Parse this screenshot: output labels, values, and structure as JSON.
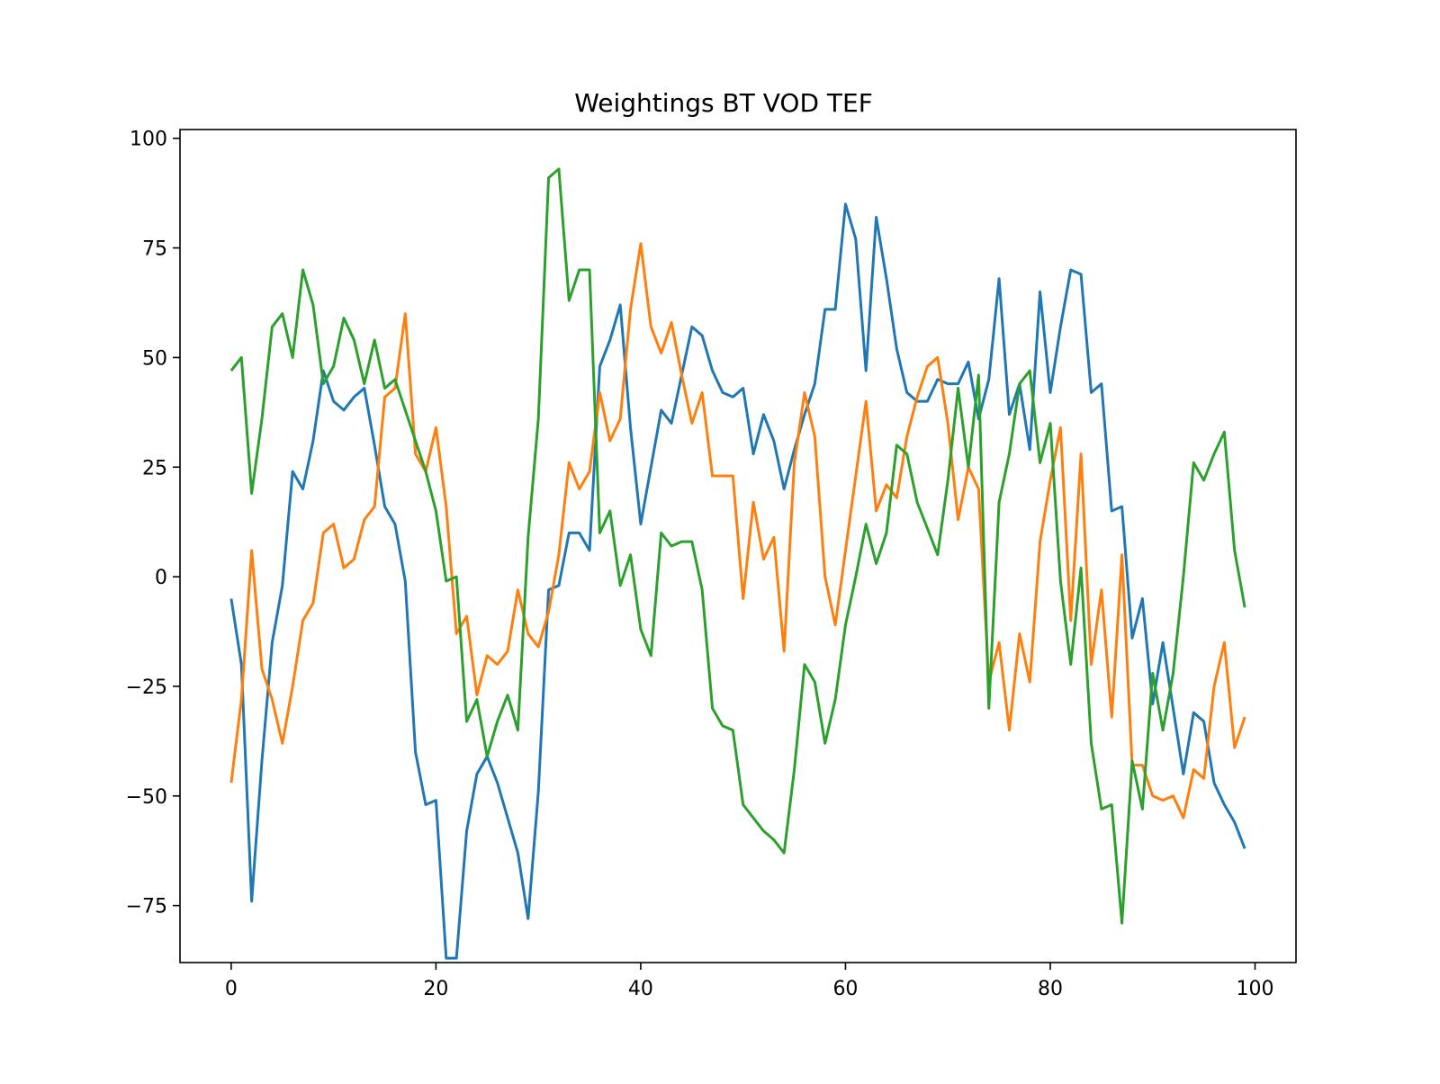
{
  "chart_data": {
    "type": "line",
    "title": "Weightings BT VOD TEF",
    "xlabel": "",
    "ylabel": "",
    "xlim": [
      -5,
      104
    ],
    "ylim": [
      -88,
      102
    ],
    "xticks": [
      0,
      20,
      40,
      60,
      80,
      100
    ],
    "xtick_labels": [
      "0",
      "20",
      "40",
      "60",
      "80",
      "100"
    ],
    "yticks": [
      100,
      75,
      50,
      25,
      0,
      -25,
      -50,
      -75
    ],
    "ytick_labels": [
      "100",
      "75",
      "50",
      "25",
      "0",
      "−25",
      "−50",
      "−75"
    ],
    "grid": false,
    "legend": "none",
    "x": [
      0,
      1,
      2,
      3,
      4,
      5,
      6,
      7,
      8,
      9,
      10,
      11,
      12,
      13,
      14,
      15,
      16,
      17,
      18,
      19,
      20,
      21,
      22,
      23,
      24,
      25,
      26,
      27,
      28,
      29,
      30,
      31,
      32,
      33,
      34,
      35,
      36,
      37,
      38,
      39,
      40,
      41,
      42,
      43,
      44,
      45,
      46,
      47,
      48,
      49,
      50,
      51,
      52,
      53,
      54,
      55,
      56,
      57,
      58,
      59,
      60,
      61,
      62,
      63,
      64,
      65,
      66,
      67,
      68,
      69,
      70,
      71,
      72,
      73,
      74,
      75,
      76,
      77,
      78,
      79,
      80,
      81,
      82,
      83,
      84,
      85,
      86,
      87,
      88,
      89,
      90,
      91,
      92,
      93,
      94,
      95,
      96,
      97,
      98,
      99
    ],
    "series": [
      {
        "color": "#1f77b4",
        "values": [
          -5,
          -20,
          -74,
          -42,
          -15,
          -2,
          24,
          20,
          31,
          47,
          40,
          38,
          41,
          43,
          30,
          16,
          12,
          -1,
          -40,
          -52,
          -51,
          -87,
          -87,
          -58,
          -45,
          -41,
          -47,
          -55,
          -63,
          -78,
          -49,
          -3,
          -2,
          10,
          10,
          6,
          48,
          54,
          62,
          34,
          12,
          25,
          38,
          35,
          46,
          57,
          55,
          47,
          42,
          41,
          43,
          28,
          37,
          31,
          20,
          29,
          37,
          44,
          61,
          61,
          85,
          77,
          47,
          82,
          68,
          52,
          42,
          40,
          40,
          45,
          44,
          44,
          49,
          36,
          45,
          68,
          37,
          44,
          29,
          65,
          42,
          57,
          70,
          69,
          42,
          44,
          15,
          16,
          -14,
          -5,
          -29,
          -15,
          -30,
          -45,
          -31,
          -33,
          -47,
          -52,
          -56,
          -62
        ]
      },
      {
        "color": "#ff7f0e",
        "values": [
          -47,
          -28,
          6,
          -21,
          -28,
          -38,
          -25,
          -10,
          -6,
          10,
          12,
          2,
          4,
          13,
          16,
          41,
          43,
          60,
          28,
          24,
          34,
          16,
          -13,
          -9,
          -27,
          -18,
          -20,
          -17,
          -3,
          -13,
          -16,
          -8,
          5,
          26,
          20,
          24,
          42,
          31,
          36,
          61,
          76,
          57,
          51,
          58,
          46,
          35,
          42,
          23,
          23,
          23,
          -5,
          17,
          4,
          9,
          -17,
          26,
          42,
          32,
          0,
          -11,
          6,
          23,
          40,
          15,
          21,
          18,
          32,
          41,
          48,
          50,
          35,
          13,
          25,
          20,
          -24,
          -15,
          -35,
          -13,
          -24,
          8,
          22,
          34,
          -10,
          28,
          -20,
          -3,
          -32,
          5,
          -43,
          -43,
          -50,
          -51,
          -50,
          -55,
          -44,
          -46,
          -25,
          -15,
          -39,
          -32
        ]
      },
      {
        "color": "#2ca02c",
        "values": [
          47,
          50,
          19,
          36,
          57,
          60,
          50,
          70,
          62,
          44,
          48,
          59,
          54,
          44,
          54,
          43,
          45,
          38,
          31,
          24,
          15,
          -1,
          0,
          -33,
          -28,
          -41,
          -33,
          -27,
          -35,
          9,
          36,
          91,
          93,
          63,
          70,
          70,
          10,
          15,
          -2,
          5,
          -12,
          -18,
          10,
          7,
          8,
          8,
          -3,
          -30,
          -34,
          -35,
          -52,
          -55,
          -58,
          -60,
          -63,
          -44,
          -20,
          -24,
          -38,
          -28,
          -11,
          0,
          12,
          3,
          10,
          30,
          28,
          17,
          11,
          5,
          22,
          43,
          25,
          46,
          -30,
          17,
          28,
          44,
          47,
          26,
          35,
          -1,
          -20,
          2,
          -38,
          -53,
          -52,
          -79,
          -42,
          -53,
          -22,
          -35,
          -22,
          0,
          26,
          22,
          28,
          33,
          6,
          -7
        ]
      }
    ]
  }
}
